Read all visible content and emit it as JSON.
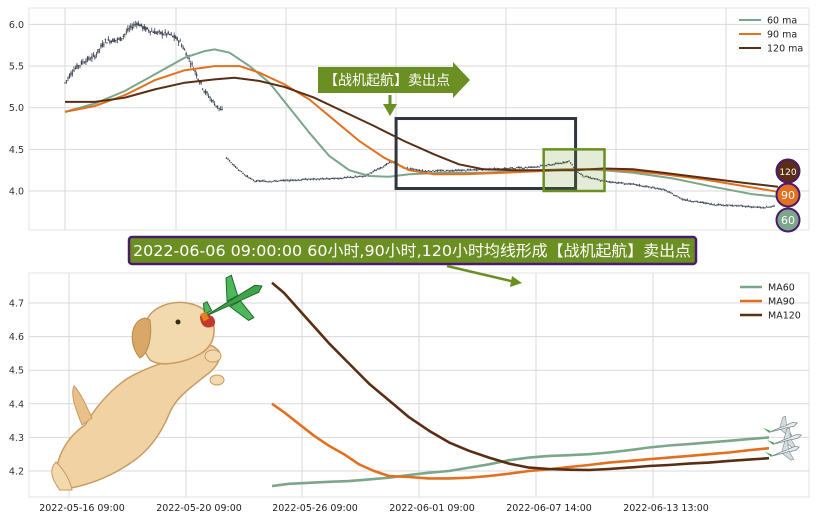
{
  "colors": {
    "ma60": "#7ba68a",
    "ma90": "#e2701f",
    "ma120": "#5a2e14",
    "candle": "#3c4454",
    "callout_green": "#6b8f23",
    "box_dark": "#2f3640",
    "grid": "#d9d9d9",
    "banner_border": "#4b1b6b"
  },
  "callout_label": "【战机起航】卖出点",
  "banner_text": "2022-06-06 09:00:00 60小时,90小时,120小时均线形成【战机起航】卖出点",
  "badges": [
    {
      "label": "120",
      "series": "ma120"
    },
    {
      "label": "90",
      "series": "ma90"
    },
    {
      "label": "60",
      "series": "ma60"
    }
  ],
  "decorations": {
    "dog": "dog-chasing-plane-icon",
    "planes": "fighter-jets-icon"
  },
  "chart_data": [
    {
      "type": "line",
      "subtype": "candlestick-with-moving-averages",
      "grid": true,
      "legend_position": "top-right",
      "ylim": [
        3.72,
        6.18
      ],
      "xlim": [
        0,
        720
      ],
      "yticks": [
        4.0,
        4.5,
        5.0,
        5.5,
        6.0
      ],
      "ytick_labels": [
        "4.0",
        "4.5",
        "5.0",
        "5.5",
        "6.0"
      ],
      "legend": [
        "60 ma",
        "90 ma",
        "120 ma"
      ],
      "price_anchors": [
        [
          0,
          5.3
        ],
        [
          8,
          5.45
        ],
        [
          18,
          5.55
        ],
        [
          30,
          5.62
        ],
        [
          40,
          5.8
        ],
        [
          55,
          5.82
        ],
        [
          65,
          5.95
        ],
        [
          72,
          6.02
        ],
        [
          80,
          5.95
        ],
        [
          92,
          5.9
        ],
        [
          105,
          5.88
        ],
        [
          115,
          5.8
        ],
        [
          124,
          5.6
        ],
        [
          132,
          5.4
        ],
        [
          140,
          5.2
        ],
        [
          150,
          5.05
        ],
        [
          158,
          4.95
        ],
        [
          162,
          4.4
        ],
        [
          170,
          4.3
        ],
        [
          182,
          4.18
        ],
        [
          190,
          4.12
        ],
        [
          210,
          4.12
        ],
        [
          240,
          4.14
        ],
        [
          270,
          4.15
        ],
        [
          300,
          4.18
        ],
        [
          320,
          4.3
        ],
        [
          328,
          4.36
        ],
        [
          340,
          4.28
        ],
        [
          360,
          4.24
        ],
        [
          400,
          4.25
        ],
        [
          440,
          4.27
        ],
        [
          470,
          4.29
        ],
        [
          490,
          4.32
        ],
        [
          506,
          4.36
        ],
        [
          512,
          4.25
        ],
        [
          520,
          4.18
        ],
        [
          540,
          4.12
        ],
        [
          570,
          4.08
        ],
        [
          600,
          4.02
        ],
        [
          620,
          3.9
        ],
        [
          650,
          3.84
        ],
        [
          680,
          3.82
        ],
        [
          700,
          3.8
        ],
        [
          712,
          3.82
        ]
      ],
      "series": [
        {
          "name": "60 ma",
          "key": "ma60",
          "points": [
            [
              0,
              4.95
            ],
            [
              30,
              5.05
            ],
            [
              60,
              5.2
            ],
            [
              90,
              5.4
            ],
            [
              120,
              5.6
            ],
            [
              140,
              5.68
            ],
            [
              150,
              5.7
            ],
            [
              165,
              5.66
            ],
            [
              185,
              5.5
            ],
            [
              205,
              5.3
            ],
            [
              225,
              5.0
            ],
            [
              245,
              4.7
            ],
            [
              265,
              4.42
            ],
            [
              285,
              4.25
            ],
            [
              305,
              4.18
            ],
            [
              325,
              4.17
            ],
            [
              345,
              4.2
            ],
            [
              380,
              4.22
            ],
            [
              420,
              4.22
            ],
            [
              460,
              4.24
            ],
            [
              500,
              4.26
            ],
            [
              520,
              4.26
            ],
            [
              540,
              4.25
            ],
            [
              570,
              4.22
            ],
            [
              610,
              4.15
            ],
            [
              650,
              4.05
            ],
            [
              690,
              3.96
            ],
            [
              715,
              3.93
            ]
          ]
        },
        {
          "name": "90 ma",
          "key": "ma90",
          "points": [
            [
              0,
              4.95
            ],
            [
              30,
              5.02
            ],
            [
              60,
              5.15
            ],
            [
              90,
              5.33
            ],
            [
              120,
              5.45
            ],
            [
              150,
              5.5
            ],
            [
              175,
              5.5
            ],
            [
              195,
              5.42
            ],
            [
              220,
              5.28
            ],
            [
              245,
              5.1
            ],
            [
              270,
              4.85
            ],
            [
              295,
              4.6
            ],
            [
              320,
              4.4
            ],
            [
              345,
              4.25
            ],
            [
              370,
              4.2
            ],
            [
              400,
              4.2
            ],
            [
              440,
              4.22
            ],
            [
              480,
              4.24
            ],
            [
              510,
              4.26
            ],
            [
              540,
              4.26
            ],
            [
              570,
              4.24
            ],
            [
              600,
              4.2
            ],
            [
              640,
              4.14
            ],
            [
              680,
              4.06
            ],
            [
              715,
              3.99
            ]
          ]
        },
        {
          "name": "120 ma",
          "key": "ma120",
          "points": [
            [
              0,
              5.07
            ],
            [
              30,
              5.07
            ],
            [
              60,
              5.12
            ],
            [
              90,
              5.22
            ],
            [
              120,
              5.3
            ],
            [
              150,
              5.34
            ],
            [
              170,
              5.36
            ],
            [
              195,
              5.32
            ],
            [
              220,
              5.25
            ],
            [
              250,
              5.12
            ],
            [
              280,
              4.95
            ],
            [
              310,
              4.78
            ],
            [
              340,
              4.6
            ],
            [
              370,
              4.44
            ],
            [
              395,
              4.32
            ],
            [
              420,
              4.26
            ],
            [
              450,
              4.25
            ],
            [
              480,
              4.25
            ],
            [
              510,
              4.25
            ],
            [
              540,
              4.27
            ],
            [
              570,
              4.26
            ],
            [
              600,
              4.22
            ],
            [
              640,
              4.16
            ],
            [
              680,
              4.1
            ],
            [
              715,
              4.05
            ]
          ]
        }
      ],
      "annotations": [
        {
          "type": "box",
          "x": [
            332,
            512
          ],
          "y": [
            4.03,
            4.87
          ],
          "color": "box_dark"
        },
        {
          "type": "box",
          "x": [
            480,
            541
          ],
          "y": [
            4.0,
            4.5
          ],
          "color": "callout_green"
        }
      ]
    },
    {
      "type": "line",
      "grid": true,
      "legend_position": "top-right",
      "ylim": [
        4.165,
        4.81
      ],
      "yticks": [
        4.2,
        4.3,
        4.4,
        4.5,
        4.6,
        4.7
      ],
      "ytick_labels": [
        "4.2",
        "4.3",
        "4.4",
        "4.5",
        "4.6",
        "4.7"
      ],
      "xlim": [
        0,
        770
      ],
      "xticks": [
        40,
        157,
        273,
        390,
        507,
        624
      ],
      "xtick_labels": [
        "2022-05-16 09:00",
        "2022-05-20 09:00",
        "2022-05-26 09:00",
        "2022-06-01 09:00",
        "2022-06-07 14:00",
        "2022-06-13 13:00"
      ],
      "legend": [
        "MA60",
        "MA90",
        "MA120"
      ],
      "series": [
        {
          "name": "MA60",
          "key": "ma60",
          "points": [
            [
              243,
              4.155
            ],
            [
              260,
              4.162
            ],
            [
              280,
              4.165
            ],
            [
              300,
              4.168
            ],
            [
              320,
              4.17
            ],
            [
              340,
              4.175
            ],
            [
              360,
              4.18
            ],
            [
              380,
              4.188
            ],
            [
              400,
              4.195
            ],
            [
              420,
              4.2
            ],
            [
              440,
              4.21
            ],
            [
              460,
              4.22
            ],
            [
              480,
              4.232
            ],
            [
              500,
              4.24
            ],
            [
              520,
              4.245
            ],
            [
              540,
              4.247
            ],
            [
              560,
              4.25
            ],
            [
              580,
              4.255
            ],
            [
              600,
              4.262
            ],
            [
              620,
              4.27
            ],
            [
              640,
              4.276
            ],
            [
              660,
              4.28
            ],
            [
              680,
              4.285
            ],
            [
              700,
              4.29
            ],
            [
              720,
              4.295
            ],
            [
              740,
              4.3
            ]
          ]
        },
        {
          "name": "MA90",
          "key": "ma90",
          "points": [
            [
              243,
              4.4
            ],
            [
              255,
              4.375
            ],
            [
              270,
              4.34
            ],
            [
              285,
              4.305
            ],
            [
              300,
              4.275
            ],
            [
              315,
              4.25
            ],
            [
              330,
              4.22
            ],
            [
              345,
              4.2
            ],
            [
              360,
              4.185
            ],
            [
              380,
              4.182
            ],
            [
              400,
              4.178
            ],
            [
              420,
              4.178
            ],
            [
              440,
              4.18
            ],
            [
              460,
              4.185
            ],
            [
              480,
              4.192
            ],
            [
              500,
              4.2
            ],
            [
              520,
              4.205
            ],
            [
              540,
              4.212
            ],
            [
              560,
              4.218
            ],
            [
              580,
              4.225
            ],
            [
              600,
              4.23
            ],
            [
              620,
              4.235
            ],
            [
              640,
              4.24
            ],
            [
              660,
              4.245
            ],
            [
              680,
              4.25
            ],
            [
              700,
              4.255
            ],
            [
              720,
              4.262
            ],
            [
              740,
              4.268
            ]
          ]
        },
        {
          "name": "MA120",
          "key": "ma120",
          "points": [
            [
              243,
              4.76
            ],
            [
              255,
              4.73
            ],
            [
              270,
              4.68
            ],
            [
              285,
              4.63
            ],
            [
              300,
              4.58
            ],
            [
              320,
              4.52
            ],
            [
              340,
              4.46
            ],
            [
              360,
              4.41
            ],
            [
              380,
              4.36
            ],
            [
              400,
              4.32
            ],
            [
              420,
              4.285
            ],
            [
              440,
              4.26
            ],
            [
              460,
              4.24
            ],
            [
              480,
              4.222
            ],
            [
              500,
              4.21
            ],
            [
              520,
              4.206
            ],
            [
              540,
              4.204
            ],
            [
              560,
              4.203
            ],
            [
              580,
              4.206
            ],
            [
              600,
              4.21
            ],
            [
              620,
              4.215
            ],
            [
              640,
              4.218
            ],
            [
              660,
              4.222
            ],
            [
              680,
              4.225
            ],
            [
              700,
              4.23
            ],
            [
              720,
              4.234
            ],
            [
              740,
              4.238
            ]
          ]
        }
      ]
    }
  ]
}
